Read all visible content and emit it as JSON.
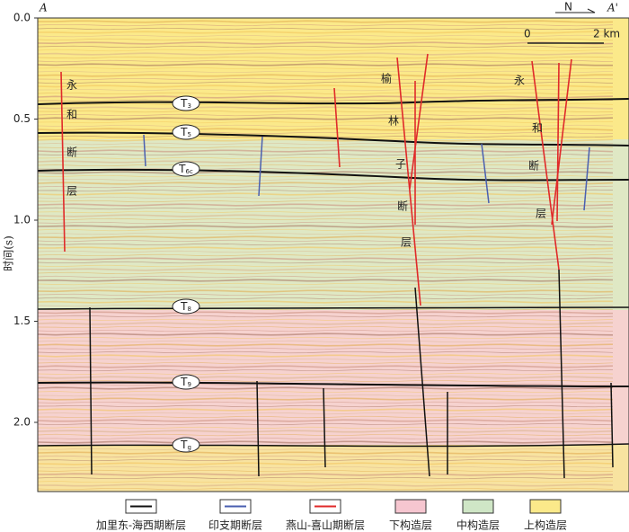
{
  "figure": {
    "section_start": "A",
    "section_end": "A'",
    "north": "N",
    "scale_start": "0",
    "scale_end": "2 km",
    "y_axis": {
      "label": "时间(s)",
      "ticks": [
        {
          "value": 0,
          "label": "0.0"
        },
        {
          "value": 0.5,
          "label": "0.5"
        },
        {
          "value": 1,
          "label": "1.0"
        },
        {
          "value": 1.5,
          "label": "1.5"
        },
        {
          "value": 2,
          "label": "2.0"
        }
      ]
    },
    "horizons": [
      {
        "main": "T",
        "sub": "3"
      },
      {
        "main": "T",
        "sub": "5"
      },
      {
        "main": "T",
        "sub": "6c"
      },
      {
        "main": "T",
        "sub": "8"
      },
      {
        "main": "T",
        "sub": "9"
      },
      {
        "main": "T",
        "sub": "g"
      }
    ],
    "fault_labels": [
      [
        "永",
        "和",
        "断",
        "层"
      ],
      [
        "榆",
        "林",
        "子",
        "断",
        "层"
      ],
      [
        "永",
        "和",
        "断",
        "层"
      ]
    ],
    "legend": [
      "加里东-海西期断层",
      "印支期断层",
      "燕山-喜山期断层",
      "下构造层",
      "中构造层",
      "上构造层"
    ]
  }
}
